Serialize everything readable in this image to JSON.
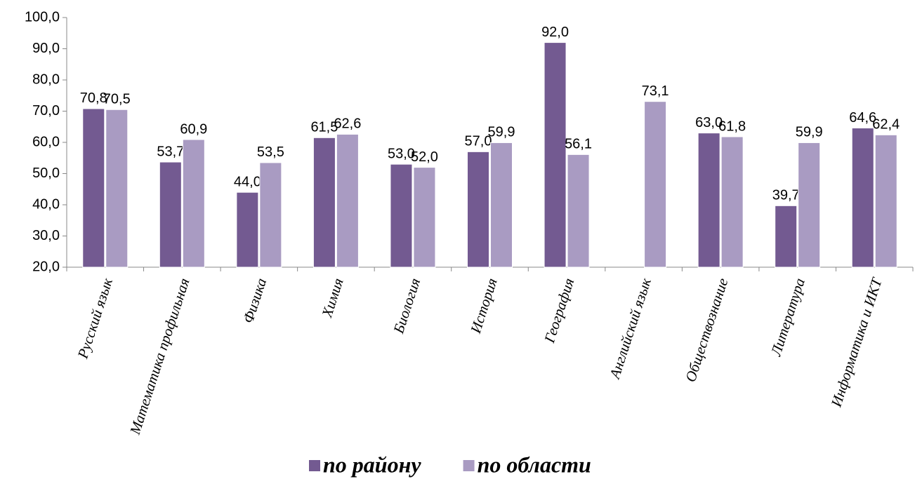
{
  "chart_data": {
    "type": "bar",
    "categories": [
      "Русский язык",
      "Математика профильная",
      "Физика",
      "Химия",
      "Биология",
      "История",
      "География",
      "Английский язык",
      "Обществознание",
      "Литература",
      "Информатика и ИКТ"
    ],
    "series": [
      {
        "name": "по району",
        "color": "#735a91",
        "values": [
          70.8,
          53.7,
          44.0,
          61.5,
          53.0,
          57.0,
          92.0,
          null,
          63.0,
          39.7,
          64.6
        ],
        "value_labels": [
          "70,8",
          "53,7",
          "44,0",
          "61,5",
          "53,0",
          "57,0",
          "92,0",
          null,
          "63,0",
          "39,7",
          "64,6"
        ]
      },
      {
        "name": "по области",
        "color": "#a99bc2",
        "values": [
          70.5,
          60.9,
          53.5,
          62.6,
          52.0,
          59.9,
          56.1,
          73.1,
          61.8,
          59.9,
          62.4
        ],
        "value_labels": [
          "70,5",
          "60,9",
          "53,5",
          "62,6",
          "52,0",
          "59,9",
          "56,1",
          "73,1",
          "61,8",
          "59,9",
          "62,4"
        ]
      }
    ],
    "ylim": [
      20,
      100
    ],
    "yticks": [
      {
        "value": 20,
        "label": "20,0"
      },
      {
        "value": 30,
        "label": "30,0"
      },
      {
        "value": 40,
        "label": "40,0"
      },
      {
        "value": 50,
        "label": "50,0"
      },
      {
        "value": 60,
        "label": "60,0"
      },
      {
        "value": 70,
        "label": "70,0"
      },
      {
        "value": 80,
        "label": "80,0"
      },
      {
        "value": 90,
        "label": "90,0"
      },
      {
        "value": 100,
        "label": "100,0"
      }
    ],
    "legend": "bottom"
  }
}
